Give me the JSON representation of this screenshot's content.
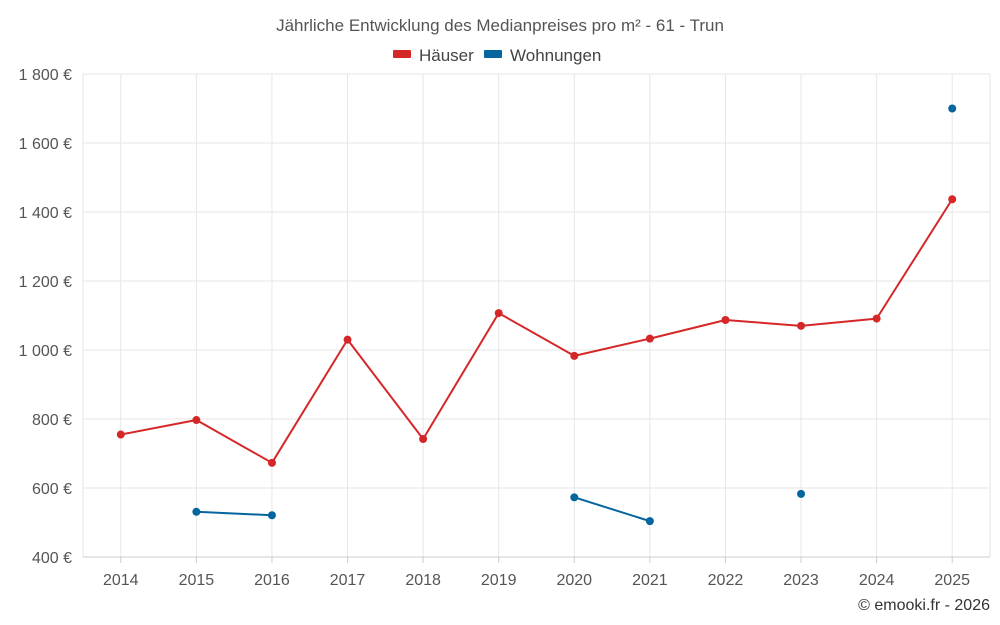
{
  "chart_data": {
    "type": "line",
    "title": "Jährliche Entwicklung des Medianpreises pro m² - 61 - Trun",
    "x": [
      2014,
      2015,
      2016,
      2017,
      2018,
      2019,
      2020,
      2021,
      2022,
      2023,
      2024,
      2025
    ],
    "x_tick_labels": [
      "2014",
      "2015",
      "2016",
      "2017",
      "2018",
      "2019",
      "2020",
      "2021",
      "2022",
      "2023",
      "2024",
      "2025"
    ],
    "y_ticks": [
      400,
      600,
      800,
      1000,
      1200,
      1400,
      1600,
      1800
    ],
    "y_tick_labels": [
      "400 €",
      "600 €",
      "800 €",
      "1 000 €",
      "1 200 €",
      "1 400 €",
      "1 600 €",
      "1 800 €"
    ],
    "ylim": [
      400,
      1800
    ],
    "grid": true,
    "legend_position": "top-center",
    "series": [
      {
        "name": "Häuser",
        "color": "#d62728",
        "values": [
          755,
          797,
          673,
          1030,
          742,
          1107,
          983,
          1033,
          1087,
          1070,
          1091,
          1437
        ]
      },
      {
        "name": "Wohnungen",
        "color": "#05659e",
        "values": [
          null,
          531,
          521,
          null,
          null,
          null,
          573,
          504,
          null,
          583,
          null,
          1700
        ]
      }
    ]
  },
  "credit": "© emooki.fr - 2026"
}
